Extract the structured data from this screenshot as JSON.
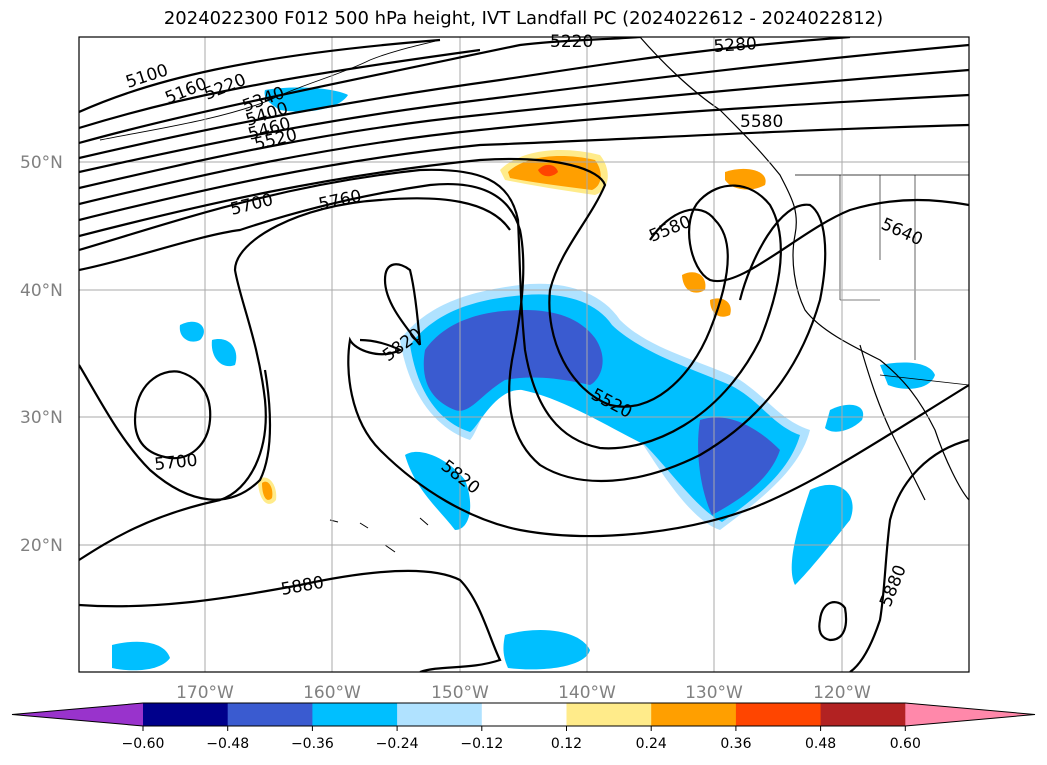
{
  "title": "2024022300 F012 500 hPa height, IVT Landfall PC (2024022612 - 2024022812)",
  "lat_labels": [
    "50°N",
    "40°N",
    "30°N",
    "20°N"
  ],
  "lon_labels": [
    "170°W",
    "160°W",
    "150°W",
    "140°W",
    "130°W",
    "120°W"
  ],
  "contour_labels": [
    "5100",
    "5160",
    "5220",
    "5340",
    "5400",
    "5460",
    "5520",
    "5220",
    "5280",
    "5580",
    "5700",
    "5760",
    "5580",
    "5640",
    "5820",
    "5520",
    "5700",
    "5820",
    "5880",
    "5880"
  ],
  "colorbar": {
    "ticks": [
      "−0.60",
      "−0.48",
      "−0.36",
      "−0.24",
      "−0.12",
      "0.12",
      "0.24",
      "0.36",
      "0.48",
      "0.60"
    ],
    "colors": [
      "#9933cc",
      "#00008b",
      "#3a5bd0",
      "#00bfff",
      "#b0e2ff",
      "#ffffff",
      "#ffeb8a",
      "#ff9f00",
      "#ff4500",
      "#b22222",
      "#ff88aa"
    ]
  }
}
